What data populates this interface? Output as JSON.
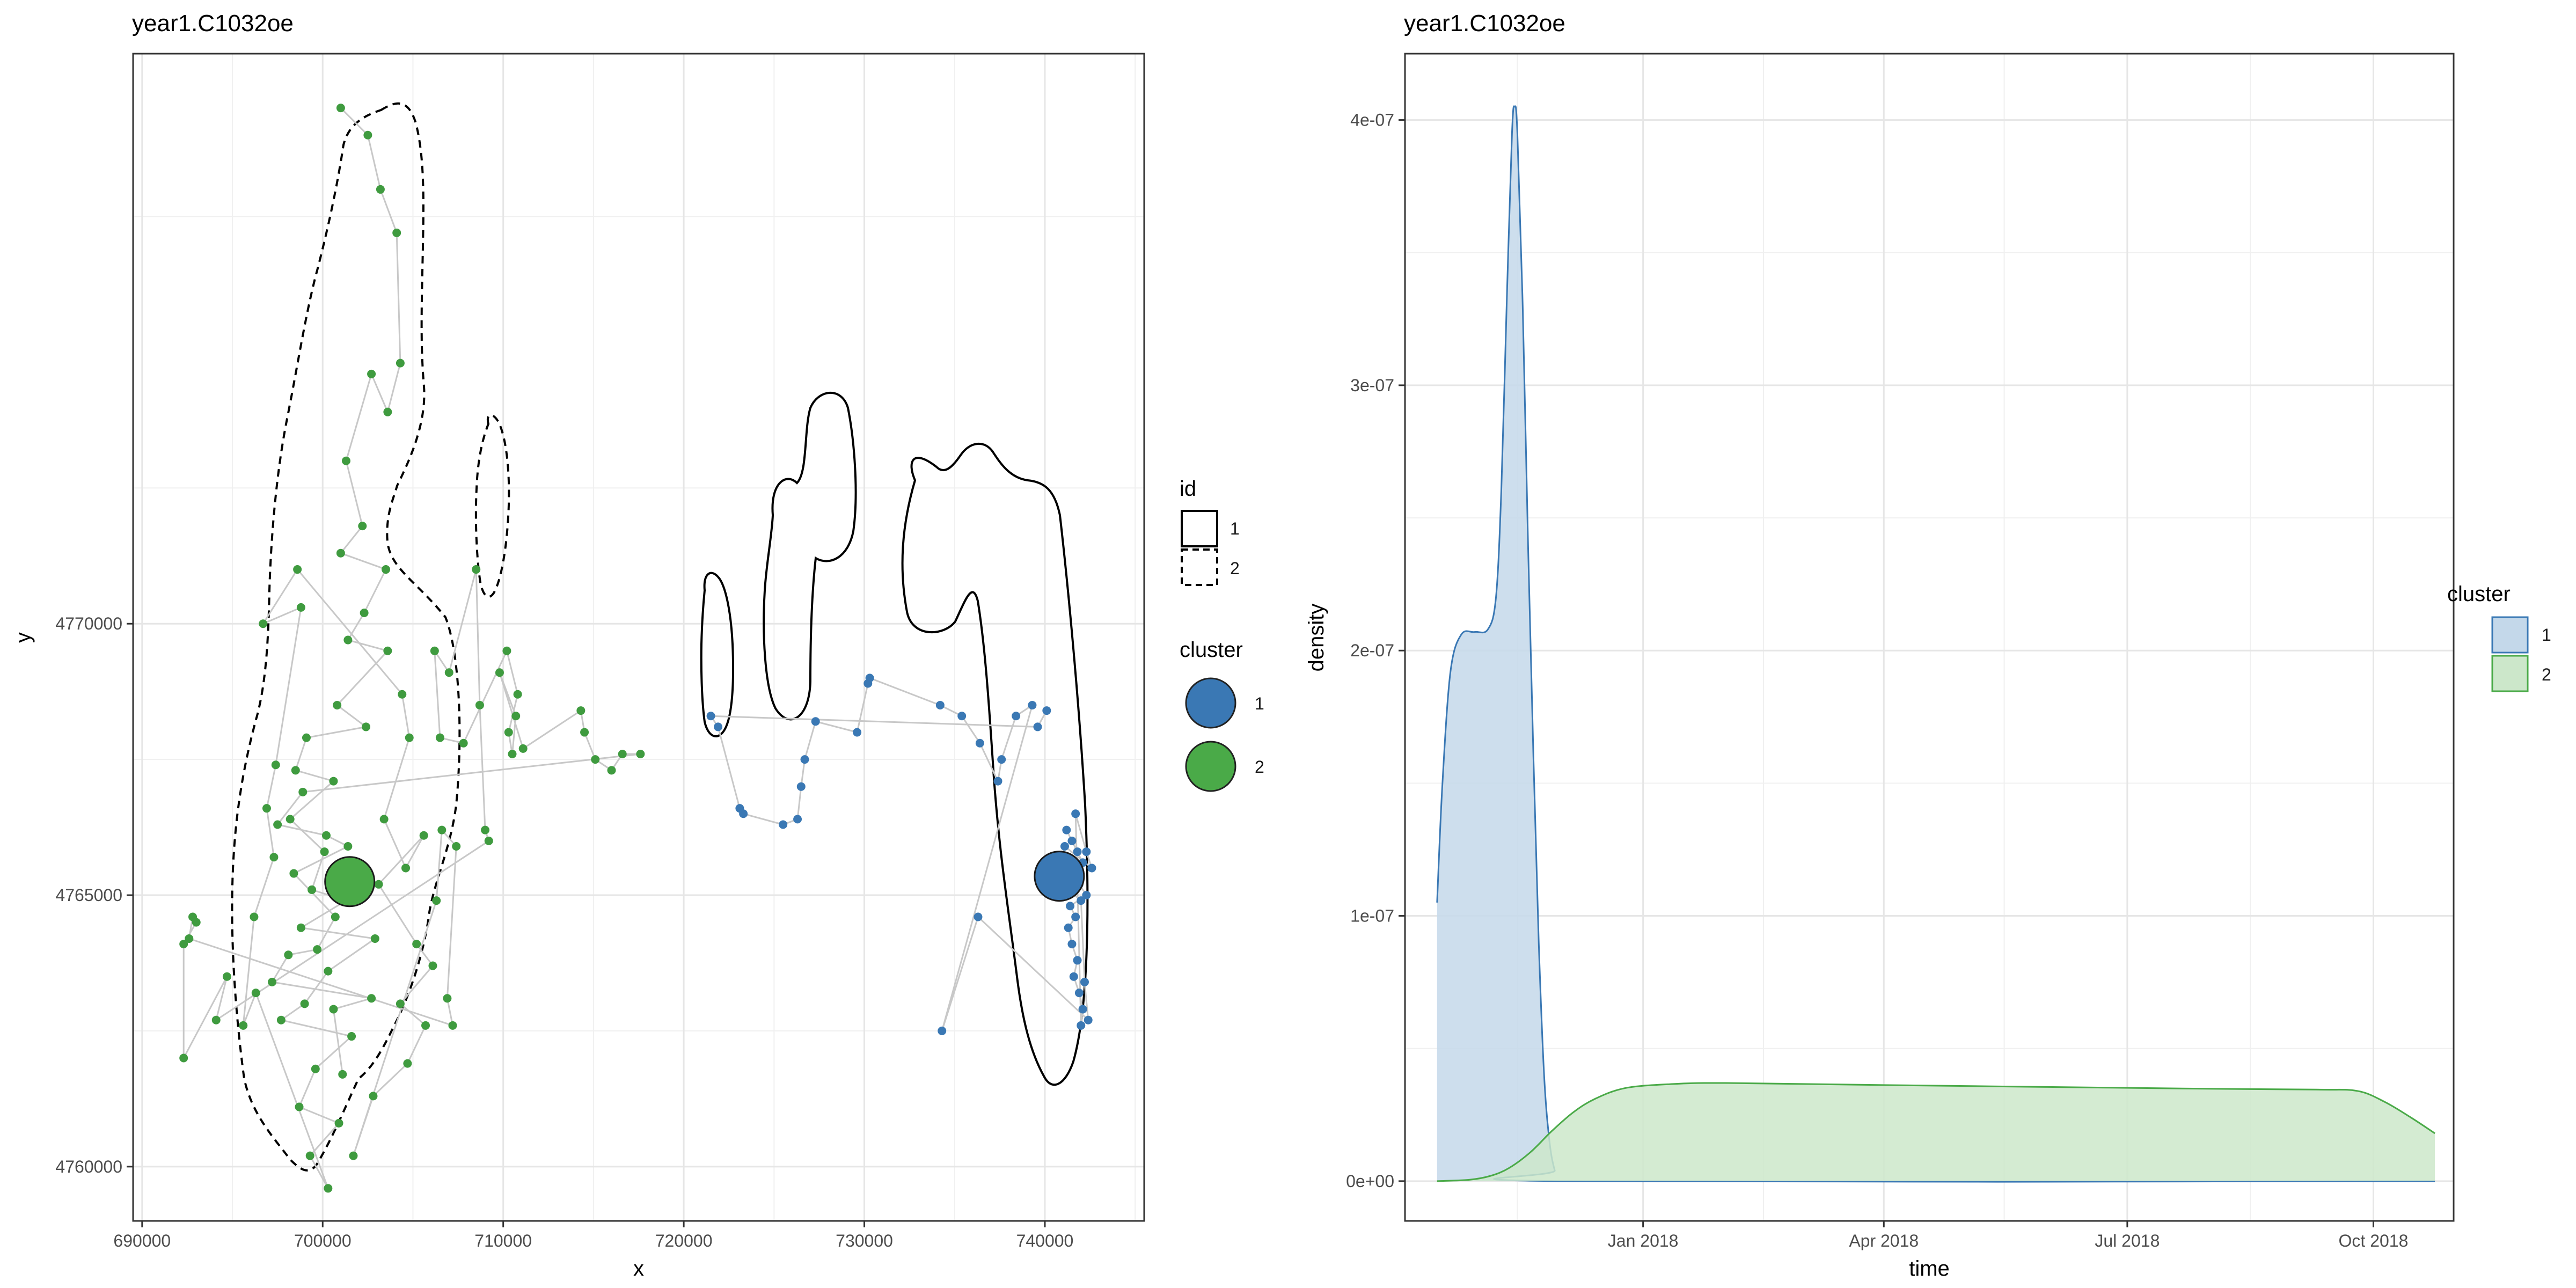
{
  "chart_data": [
    {
      "type": "scatter",
      "title": "year1.C1032oe",
      "xlabel": "x",
      "ylabel": "y",
      "xlim": [
        689500,
        745500
      ],
      "ylim": [
        4759000,
        4780500
      ],
      "xticks": [
        690000,
        700000,
        710000,
        720000,
        730000,
        740000
      ],
      "xtick_labels": [
        "690000",
        "700000",
        "710000",
        "720000",
        "730000",
        "740000"
      ],
      "yticks": [
        4760000,
        4765000,
        4770000
      ],
      "ytick_labels": [
        "4760000",
        "4765000",
        "4770000"
      ],
      "grid": true,
      "legend_position": "right",
      "legends": {
        "id": {
          "title": "id",
          "entries": [
            {
              "label": "1",
              "line": "solid"
            },
            {
              "label": "2",
              "line": "dashed"
            }
          ]
        },
        "cluster": {
          "title": "cluster",
          "entries": [
            {
              "label": "1",
              "color": "#3a78b4"
            },
            {
              "label": "2",
              "color": "#4aaa48"
            }
          ]
        }
      },
      "series": [
        {
          "cluster": "1",
          "color": "#3a78b4",
          "points": [
            [
              741200,
              4766200
            ],
            [
              741500,
              4766000
            ],
            [
              741800,
              4765800
            ],
            [
              742100,
              4765600
            ],
            [
              741600,
              4765400
            ],
            [
              741900,
              4765200
            ],
            [
              742300,
              4765000
            ],
            [
              741400,
              4764800
            ],
            [
              741700,
              4764600
            ],
            [
              741300,
              4764400
            ],
            [
              741500,
              4764100
            ],
            [
              741800,
              4763800
            ],
            [
              741600,
              4763500
            ],
            [
              741900,
              4763200
            ],
            [
              742100,
              4762900
            ],
            [
              742000,
              4762600
            ],
            [
              741700,
              4766500
            ],
            [
              742300,
              4765800
            ],
            [
              742600,
              4765500
            ],
            [
              741100,
              4765900
            ],
            [
              740900,
              4765600
            ],
            [
              741300,
              4765100
            ],
            [
              742000,
              4764900
            ],
            [
              742200,
              4763400
            ],
            [
              742400,
              4762700
            ],
            [
              736300,
              4764600
            ],
            [
              734300,
              4762500
            ],
            [
              739300,
              4768500
            ],
            [
              738400,
              4768300
            ],
            [
              737600,
              4767500
            ],
            [
              737400,
              4767100
            ],
            [
              736400,
              4767800
            ],
            [
              735400,
              4768300
            ],
            [
              734200,
              4768500
            ],
            [
              730300,
              4769000
            ],
            [
              730200,
              4768900
            ],
            [
              729600,
              4768000
            ],
            [
              727300,
              4768200
            ],
            [
              726700,
              4767500
            ],
            [
              726500,
              4767000
            ],
            [
              726300,
              4766400
            ],
            [
              725500,
              4766300
            ],
            [
              723300,
              4766500
            ],
            [
              723100,
              4766600
            ],
            [
              721900,
              4768100
            ],
            [
              721500,
              4768300
            ],
            [
              739600,
              4768100
            ],
            [
              740100,
              4768400
            ]
          ],
          "centroid": [
            740800,
            4765350
          ]
        },
        {
          "cluster": "2",
          "color": "#3f9b3f",
          "center_marker_color": "#4aaa48",
          "points": [
            [
              701000,
              4779500
            ],
            [
              702500,
              4779000
            ],
            [
              703200,
              4778000
            ],
            [
              704100,
              4777200
            ],
            [
              704300,
              4774800
            ],
            [
              703600,
              4773900
            ],
            [
              702700,
              4774600
            ],
            [
              701300,
              4773000
            ],
            [
              702200,
              4771800
            ],
            [
              701000,
              4771300
            ],
            [
              703500,
              4771000
            ],
            [
              702300,
              4770200
            ],
            [
              701400,
              4769700
            ],
            [
              703600,
              4769500
            ],
            [
              700800,
              4768500
            ],
            [
              702400,
              4768100
            ],
            [
              699100,
              4767900
            ],
            [
              698500,
              4767300
            ],
            [
              700600,
              4767100
            ],
            [
              698200,
              4766400
            ],
            [
              700100,
              4765800
            ],
            [
              699400,
              4765100
            ],
            [
              701300,
              4764900
            ],
            [
              698800,
              4764400
            ],
            [
              702900,
              4764200
            ],
            [
              700300,
              4763600
            ],
            [
              699000,
              4763000
            ],
            [
              697700,
              4762700
            ],
            [
              701600,
              4762400
            ],
            [
              699600,
              4761800
            ],
            [
              698700,
              4761100
            ],
            [
              700900,
              4760800
            ],
            [
              699300,
              4760200
            ],
            [
              700300,
              4759600
            ],
            [
              696300,
              4763200
            ],
            [
              695600,
              4762600
            ],
            [
              696200,
              4764600
            ],
            [
              697300,
              4765700
            ],
            [
              696900,
              4766600
            ],
            [
              697400,
              4767400
            ],
            [
              698800,
              4770300
            ],
            [
              696700,
              4770000
            ],
            [
              698600,
              4771000
            ],
            [
              704400,
              4768700
            ],
            [
              704800,
              4767900
            ],
            [
              703400,
              4766400
            ],
            [
              704600,
              4765500
            ],
            [
              705600,
              4766100
            ],
            [
              703100,
              4765200
            ],
            [
              705200,
              4764100
            ],
            [
              706100,
              4763700
            ],
            [
              704300,
              4763000
            ],
            [
              705700,
              4762600
            ],
            [
              704700,
              4761900
            ],
            [
              702800,
              4761300
            ],
            [
              701700,
              4760200
            ],
            [
              706300,
              4764900
            ],
            [
              706600,
              4766200
            ],
            [
              707400,
              4765900
            ],
            [
              706900,
              4763100
            ],
            [
              707200,
              4762600
            ],
            [
              692600,
              4764200
            ],
            [
              692800,
              4764600
            ],
            [
              693000,
              4764500
            ],
            [
              692300,
              4764100
            ],
            [
              692300,
              4762000
            ],
            [
              694700,
              4763500
            ],
            [
              694100,
              4762700
            ],
            [
              709200,
              4766000
            ],
            [
              709000,
              4766200
            ],
            [
              708700,
              4768500
            ],
            [
              708500,
              4771000
            ],
            [
              707000,
              4769100
            ],
            [
              706200,
              4769500
            ],
            [
              706500,
              4767900
            ],
            [
              707800,
              4767800
            ],
            [
              710200,
              4769500
            ],
            [
              710800,
              4768700
            ],
            [
              710300,
              4768000
            ],
            [
              710500,
              4767600
            ],
            [
              710700,
              4768300
            ],
            [
              709800,
              4769100
            ],
            [
              711100,
              4767700
            ],
            [
              714300,
              4768400
            ],
            [
              714500,
              4768000
            ],
            [
              715100,
              4767500
            ],
            [
              716000,
              4767300
            ],
            [
              716600,
              4767600
            ],
            [
              717600,
              4767600
            ],
            [
              698900,
              4766900
            ],
            [
              697500,
              4766300
            ],
            [
              700200,
              4766100
            ],
            [
              701400,
              4765900
            ],
            [
              698400,
              4765400
            ],
            [
              700700,
              4764600
            ],
            [
              699700,
              4764000
            ],
            [
              698100,
              4763900
            ],
            [
              697200,
              4763400
            ],
            [
              702700,
              4763100
            ],
            [
              700600,
              4762900
            ],
            [
              701100,
              4761700
            ]
          ],
          "centroid": [
            701500,
            4765250
          ]
        }
      ]
    },
    {
      "type": "area",
      "title": "year1.C1032oe",
      "xlabel": "time",
      "ylabel": "density",
      "xlim": [
        "2017-10-04",
        "2018-10-31"
      ],
      "ylim": [
        -1.5e-08,
        4.25e-07
      ],
      "xticks": [
        "2018-01-01",
        "2018-04-01",
        "2018-07-01",
        "2018-10-01"
      ],
      "xtick_labels": [
        "Jan 2018",
        "Apr 2018",
        "Jul 2018",
        "Oct 2018"
      ],
      "yticks": [
        0,
        1e-07,
        2e-07,
        3e-07,
        4e-07
      ],
      "ytick_labels": [
        "0e+00",
        "1e-07",
        "2e-07",
        "3e-07",
        "4e-07"
      ],
      "grid": true,
      "legend": {
        "title": "cluster",
        "position": "right",
        "entries": [
          {
            "label": "1",
            "color": "#3a78b4",
            "fill": "#c4d8ea"
          },
          {
            "label": "2",
            "color": "#4aaa48",
            "fill": "#cce7ca"
          }
        ]
      },
      "series": [
        {
          "name": "1",
          "color": "#3a78b4",
          "fill": "#c4d8ea",
          "points": [
            [
              "2017-10-16",
              1.05e-07
            ],
            [
              "2017-10-18",
              1.5e-07
            ],
            [
              "2017-10-21",
              1.92e-07
            ],
            [
              "2017-10-25",
              2.06e-07
            ],
            [
              "2017-10-30",
              2.07e-07
            ],
            [
              "2017-11-04",
              2.08e-07
            ],
            [
              "2017-11-07",
              2.2e-07
            ],
            [
              "2017-11-09",
              2.6e-07
            ],
            [
              "2017-11-11",
              3.3e-07
            ],
            [
              "2017-11-13",
              3.95e-07
            ],
            [
              "2017-11-14",
              4.05e-07
            ],
            [
              "2017-11-15",
              3.95e-07
            ],
            [
              "2017-11-17",
              3.3e-07
            ],
            [
              "2017-11-19",
              2.4e-07
            ],
            [
              "2017-11-21",
              1.6e-07
            ],
            [
              "2017-11-23",
              9e-08
            ],
            [
              "2017-11-25",
              4e-08
            ],
            [
              "2017-11-27",
              1.5e-08
            ],
            [
              "2017-11-29",
              4e-09
            ],
            [
              "2017-12-01",
              0.0
            ],
            [
              "2018-10-24",
              0.0
            ]
          ]
        },
        {
          "name": "2",
          "color": "#4aaa48",
          "fill": "#cce7ca",
          "points": [
            [
              "2017-10-16",
              0.0
            ],
            [
              "2017-10-28",
              5e-10
            ],
            [
              "2017-11-05",
              2e-09
            ],
            [
              "2017-11-12",
              5e-09
            ],
            [
              "2017-11-20",
              1.1e-08
            ],
            [
              "2017-11-28",
              1.9e-08
            ],
            [
              "2017-12-06",
              2.6e-08
            ],
            [
              "2017-12-14",
              3.1e-08
            ],
            [
              "2017-12-25",
              3.5e-08
            ],
            [
              "2018-01-10",
              3.65e-08
            ],
            [
              "2018-02-01",
              3.7e-08
            ],
            [
              "2018-04-01",
              3.62e-08
            ],
            [
              "2018-06-01",
              3.55e-08
            ],
            [
              "2018-08-01",
              3.48e-08
            ],
            [
              "2018-09-10",
              3.45e-08
            ],
            [
              "2018-09-25",
              3.4e-08
            ],
            [
              "2018-10-05",
              3e-08
            ],
            [
              "2018-10-15",
              2.4e-08
            ],
            [
              "2018-10-24",
              1.8e-08
            ]
          ]
        }
      ]
    }
  ]
}
